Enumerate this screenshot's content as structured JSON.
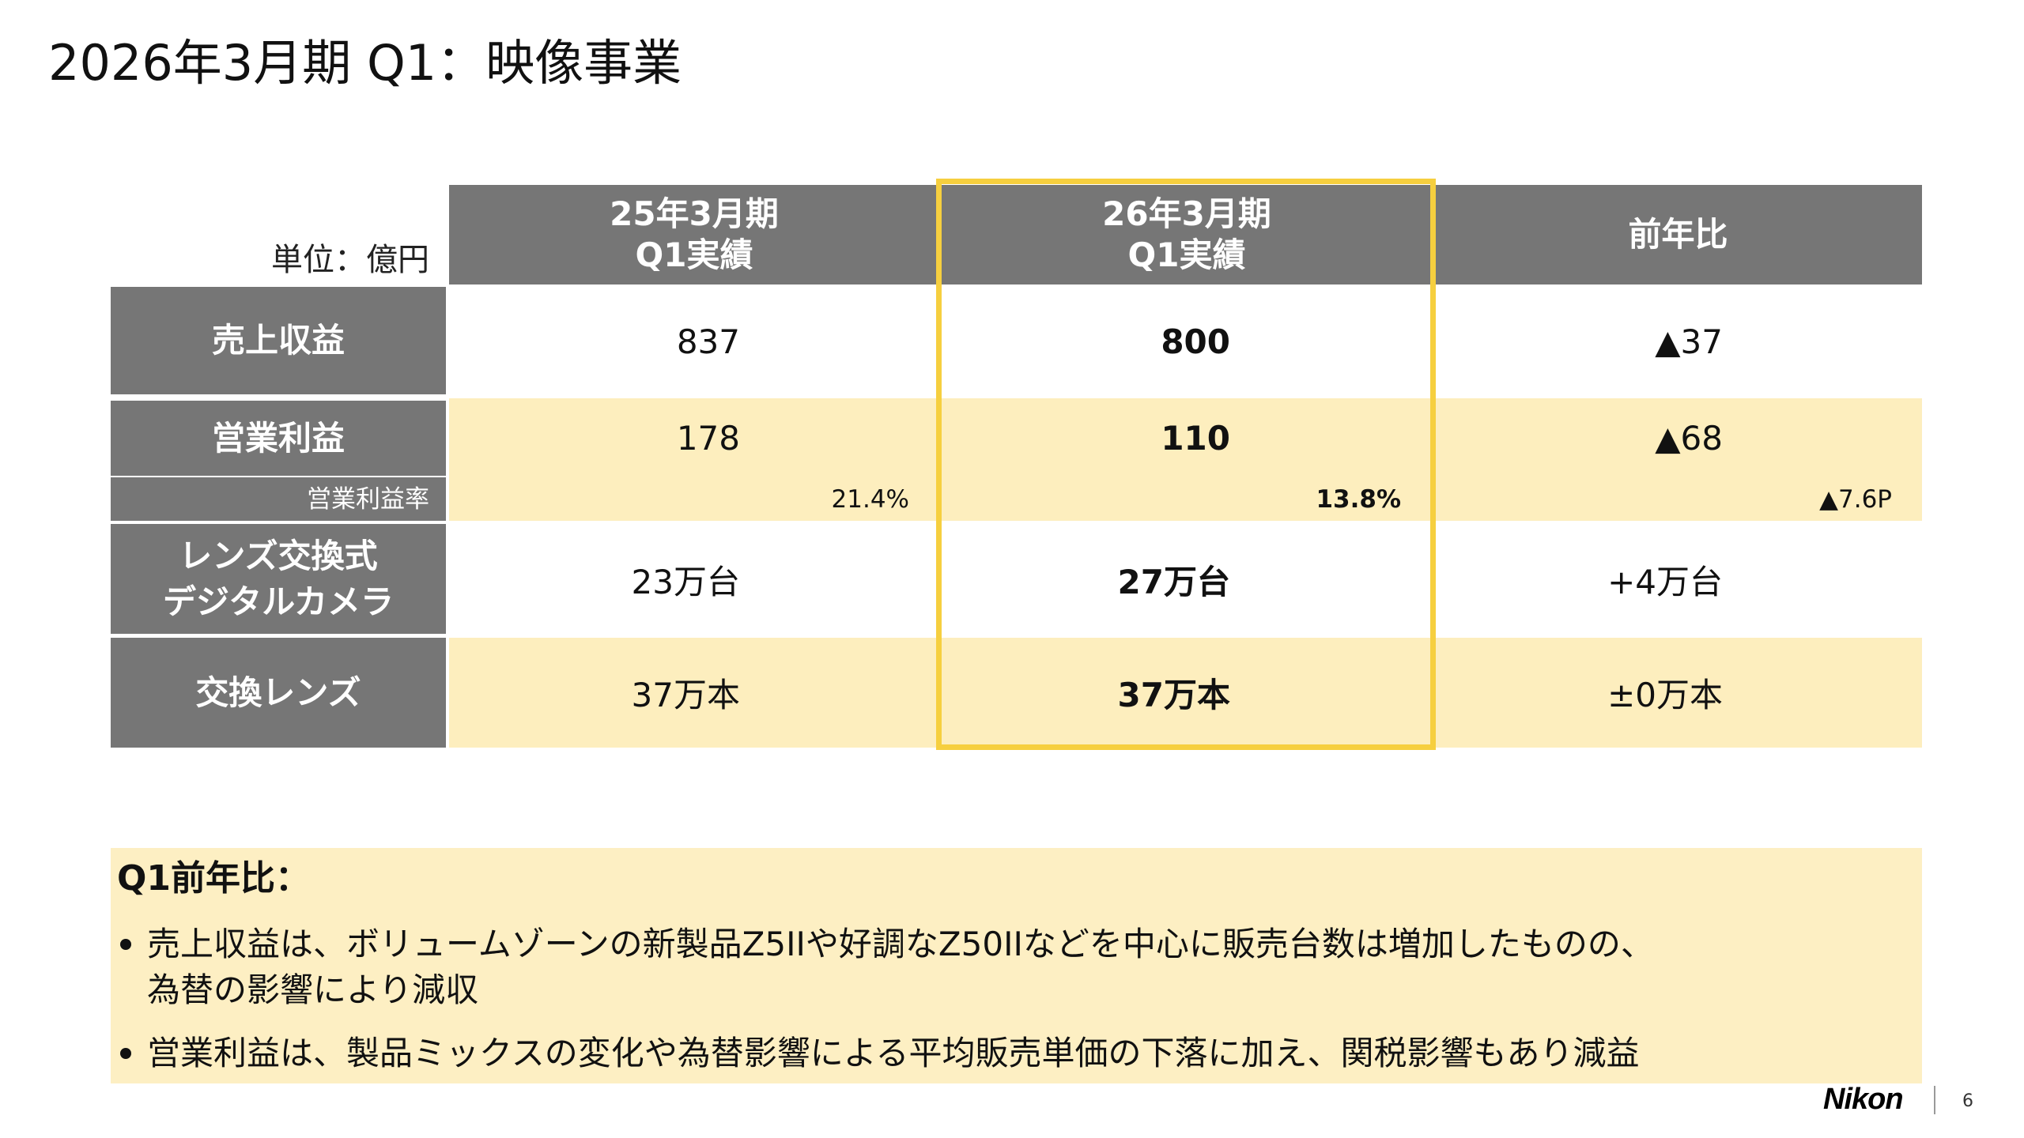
{
  "slide": {
    "title": "2026年3月期 Q1：映像事業",
    "logo": "Nikon",
    "page_number": "6"
  },
  "table": {
    "unit_label": "単位：億円",
    "columns": [
      {
        "line1": "25年3月期",
        "line2": "Q1実績"
      },
      {
        "line1": "26年3月期",
        "line2": "Q1実績"
      },
      {
        "line1": "前年比"
      }
    ],
    "rows": [
      {
        "label": "売上収益",
        "values": [
          "837",
          "800",
          "▲37"
        ]
      },
      {
        "label": "営業利益",
        "values": [
          "178",
          "110",
          "▲68"
        ]
      },
      {
        "label": "営業利益率",
        "values": [
          "21.4%",
          "13.8%",
          "▲7.6P"
        ]
      },
      {
        "label_lines": [
          "レンズ交換式",
          "デジタルカメラ"
        ],
        "values": [
          "23万台",
          "27万台",
          "+4万台"
        ]
      },
      {
        "label": "交換レンズ",
        "values": [
          "37万本",
          "37万本",
          "±0万本"
        ]
      }
    ]
  },
  "summary": {
    "heading": "Q1前年比：",
    "bullets": [
      {
        "lines": [
          "売上収益は、ボリュームゾーンの新製品Z5IIや好調なZ50IIなどを中心に販売台数は増加したものの、",
          "為替の影響により減収"
        ]
      },
      {
        "lines": [
          "営業利益は、製品ミックスの変化や為替影響による平均販売単価の下落に加え、関税影響もあり減益"
        ]
      }
    ]
  },
  "colors": {
    "header_gray": "#767676",
    "row_yellow": "#FDEEBE",
    "highlight_gold": "#F6CF3F",
    "summary_yellow": "#FDEFC3"
  }
}
